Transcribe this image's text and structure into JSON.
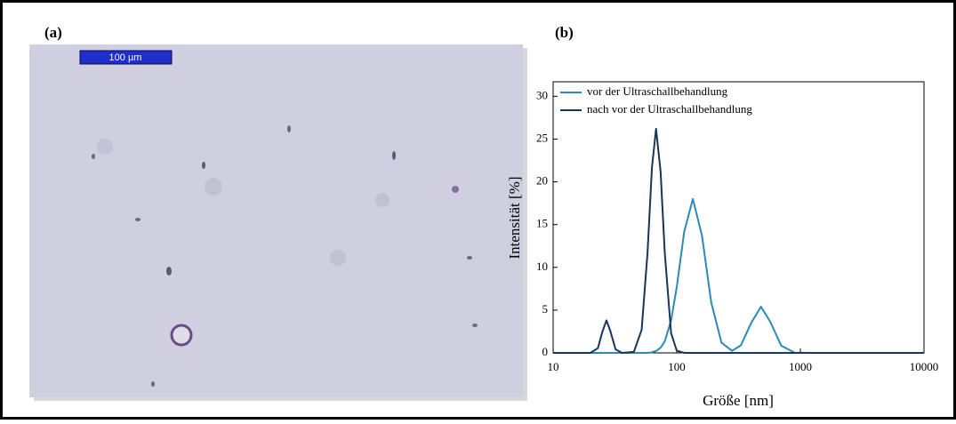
{
  "panel_a": {
    "label": "(a)",
    "scale_bar": "100 µm"
  },
  "chart_data": {
    "type": "line",
    "panel_label": "(b)",
    "x_label": "Größe [nm]",
    "y_label": "Intensität [%]",
    "x": [
      10,
      20,
      23,
      25,
      27,
      29,
      32,
      36,
      45,
      52,
      58,
      63,
      68,
      74,
      80,
      90,
      100,
      115,
      135,
      160,
      190,
      230,
      280,
      330,
      400,
      480,
      570,
      700,
      900,
      1200,
      10000
    ],
    "series": [
      {
        "name": "vor der Ultraschallbehandlung",
        "color": "#2a8ab8",
        "values": [
          0,
          0,
          0,
          0,
          0,
          0,
          0,
          0,
          0,
          0,
          0,
          0.07,
          0.22,
          0.6,
          1.37,
          3.8,
          7.7,
          14.2,
          18,
          13.7,
          5.9,
          1.2,
          0.24,
          0.88,
          3.5,
          5.4,
          3.65,
          0.84,
          0.03,
          0,
          0
        ]
      },
      {
        "name": "nach vor der Ultraschallbehandlung",
        "color": "#1b3556",
        "values": [
          0,
          0,
          0.55,
          2.45,
          3.8,
          2.57,
          0.41,
          0,
          0.12,
          2.7,
          11.7,
          21.7,
          26.2,
          21.2,
          11.7,
          2.3,
          0.26,
          0,
          0,
          0,
          0,
          0,
          0,
          0,
          0,
          0,
          0,
          0,
          0,
          0,
          0
        ]
      }
    ],
    "xscale": "log",
    "xlim": [
      10,
      10000
    ],
    "xticks": [
      10,
      100,
      1000,
      10000
    ],
    "ylim": [
      0,
      31.7
    ],
    "yticks": [
      0,
      5,
      10,
      15,
      20,
      25,
      30
    ],
    "legend": "upper left"
  }
}
